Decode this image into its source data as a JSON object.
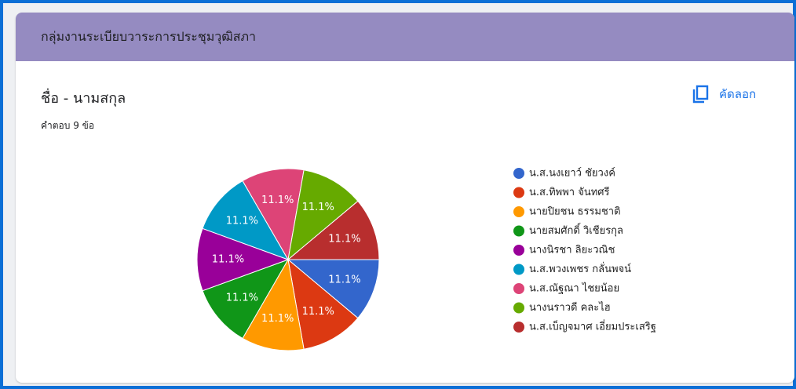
{
  "header": {
    "title": "กลุ่มงานระเบียบวาระการประชุมวุฒิสภา"
  },
  "question": {
    "title": "ชื่อ - นามสกุล",
    "response_count": "คำตอบ 9 ข้อ",
    "copy": "คัดลอก"
  },
  "chart_data": {
    "type": "pie",
    "categories": [
      "น.ส.นงเยาว์ ชัยวงค์",
      "น.ส.ทิพพา จันทศรี",
      "นายปิยชน ธรรมชาติ",
      "นายสมศักดิ์ วิเชียรกุล",
      "นางนิรชา ลิยะวณิช",
      "น.ส.พวงเพชร กลั่นพจน์",
      "น.ส.ณัฐณา ไชยน้อย",
      "นางนราวดี คละไฮ",
      "น.ส.เบ็ญจมาศ เอี่ยมประเสริฐ"
    ],
    "values": [
      11.1,
      11.1,
      11.1,
      11.1,
      11.1,
      11.1,
      11.1,
      11.1,
      11.1
    ],
    "value_labels": [
      "11.1%",
      "11.1%",
      "11.1%",
      "11.1%",
      "11.1%",
      "11.1%",
      "11.1%",
      "11.1%",
      "11.1%"
    ],
    "colors": [
      "#3366cc",
      "#dc3912",
      "#ff9900",
      "#109618",
      "#990099",
      "#0099c6",
      "#dd4477",
      "#66aa00",
      "#b82e2e"
    ],
    "legend": "right"
  }
}
